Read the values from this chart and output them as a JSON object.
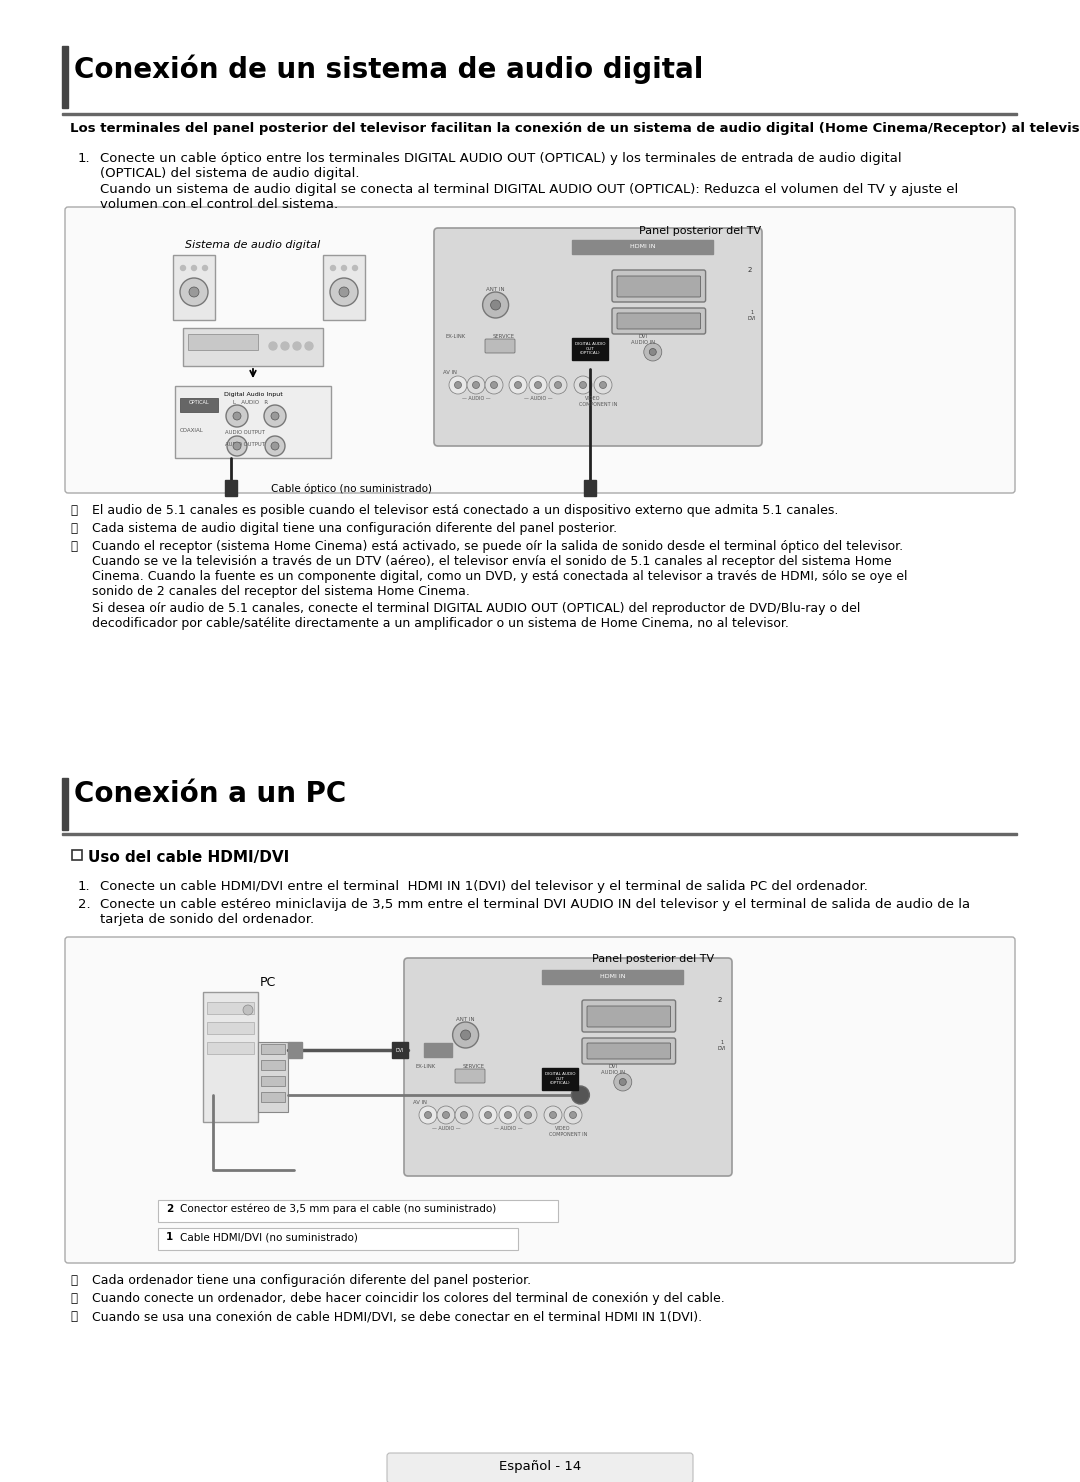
{
  "bg_color": "#ffffff",
  "section1_title": "Conexión de un sistema de audio digital",
  "section1_subtitle": "Los terminales del panel posterior del televisor facilitan la conexión de un sistema de audio digital (Home Cinema/Receptor) al televisor.",
  "section1_step1a": "Conecte un cable óptico entre los terminales DIGITAL AUDIO OUT (OPTICAL) y los terminales de entrada de audio digital",
  "section1_step1b": "(OPTICAL) del sistema de audio digital.",
  "section1_note1a": "Cuando un sistema de audio digital se conecta al terminal DIGITAL AUDIO OUT (OPTICAL): Reduzca el volumen del TV y ajuste el",
  "section1_note1b": "volumen con el control del sistema.",
  "section1_diagram_panel_label": "Panel posterior del TV",
  "section1_diagram_audio_label": "Sistema de audio digital",
  "section1_diagram_cable_label": "Cable óptico (no suministrado)",
  "section1_note2": "El audio de 5.1 canales es posible cuando el televisor está conectado a un dispositivo externo que admita 5.1 canales.",
  "section1_note3": "Cada sistema de audio digital tiene una configuración diferente del panel posterior.",
  "section1_note4a": "Cuando el receptor (sistema Home Cinema) está activado, se puede oír la salida de sonido desde el terminal óptico del televisor.",
  "section1_note4b": "Cuando se ve la televisión a través de un DTV (aéreo), el televisor envía el sonido de 5.1 canales al receptor del sistema Home",
  "section1_note4c": "Cinema. Cuando la fuente es un componente digital, como un DVD, y está conectada al televisor a través de HDMI, sólo se oye el",
  "section1_note4d": "sonido de 2 canales del receptor del sistema Home Cinema.",
  "section1_note4e": "Si desea oír audio de 5.1 canales, conecte el terminal DIGITAL AUDIO OUT (OPTICAL) del reproductor de DVD/Blu-ray o del",
  "section1_note4f": "decodificador por cable/satélite directamente a un amplificador o un sistema de Home Cinema, no al televisor.",
  "section2_title": "Conexión a un PC",
  "section2_sub_title": "Uso del cable HDMI/DVI",
  "section2_step1": "Conecte un cable HDMI/DVI entre el terminal  HDMI IN 1(DVI) del televisor y el terminal de salida PC del ordenador.",
  "section2_step2a": "Conecte un cable estéreo miniclavija de 3,5 mm entre el terminal DVI AUDIO IN del televisor y el terminal de salida de audio de la",
  "section2_step2b": "tarjeta de sonido del ordenador.",
  "section2_diagram_panel_label": "Panel posterior del TV",
  "section2_diagram_pc_label": "PC",
  "section2_diagram_bottom1": "Conector estéreo de 3,5 mm para el cable (no suministrado)",
  "section2_diagram_bottom2": "Cable HDMI/DVI (no suministrado)",
  "section2_note1": "Cada ordenador tiene una configuración diferente del panel posterior.",
  "section2_note2": "Cuando conecte un ordenador, debe hacer coincidir los colores del terminal de conexión y del cable.",
  "section2_note3": "Cuando se usa una conexión de cable HDMI/DVI, se debe conectar en el terminal HDMI IN 1(DVI).",
  "footer": "Español - 14",
  "note_symbol": "ⓩ"
}
